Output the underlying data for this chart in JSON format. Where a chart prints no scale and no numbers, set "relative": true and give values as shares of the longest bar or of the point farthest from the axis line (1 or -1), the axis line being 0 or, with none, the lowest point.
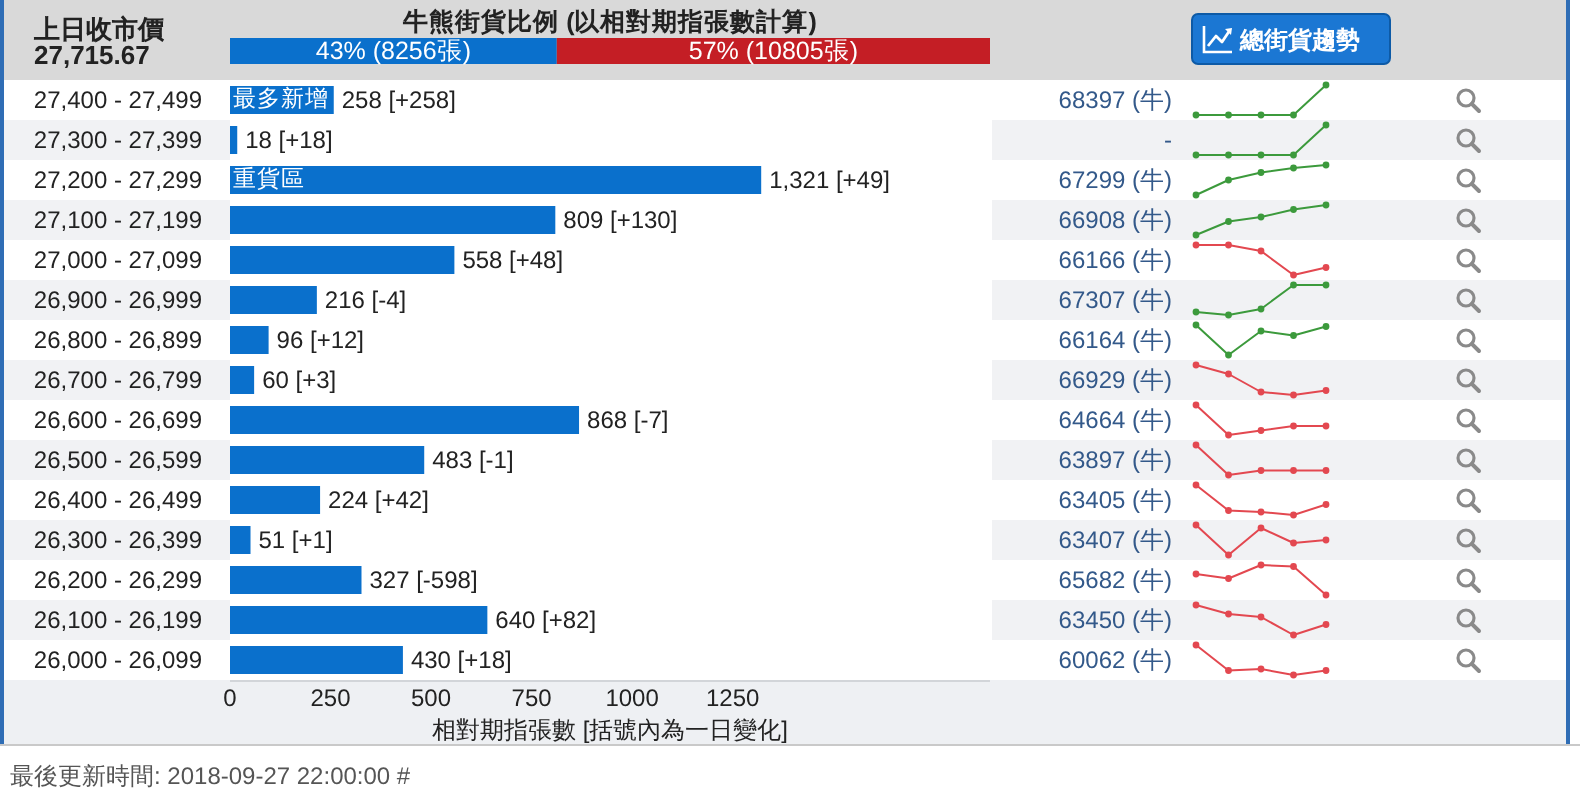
{
  "chart_data": [
    {
      "type": "other",
      "title": "上日收市價",
      "annotations": [
        "27,715.67"
      ]
    },
    {
      "type": "bar",
      "orientation": "horizontal",
      "stacked": true,
      "title": "牛熊街貨比例 (以相對期指張數計算)",
      "categories": [
        null
      ],
      "series": [
        {
          "color": "#0a70cc",
          "values": [
            43
          ],
          "value_labels": [
            "43% (8256張)"
          ]
        },
        {
          "color": "#c41e25",
          "values": [
            57
          ],
          "value_labels": [
            "57% (10805張)"
          ]
        }
      ],
      "xlim": [
        0,
        100
      ]
    },
    {
      "type": "bar",
      "orientation": "horizontal",
      "categories": [
        "27,400 - 27,499",
        "27,300 - 27,399",
        "27,200 - 27,299",
        "27,100 - 27,199",
        "27,000 - 27,099",
        "26,900 - 26,999",
        "26,800 - 26,899",
        "26,700 - 26,799",
        "26,600 - 26,699",
        "26,500 - 26,599",
        "26,400 - 26,499",
        "26,300 - 26,399",
        "26,200 - 26,299",
        "26,100 - 26,199",
        "26,000 - 26,099"
      ],
      "values": [
        258,
        18,
        1321,
        809,
        558,
        216,
        96,
        60,
        868,
        483,
        224,
        51,
        327,
        640,
        430
      ],
      "color": "#0a70cc",
      "value_labels": [
        "258 [+258]",
        "18 [+18]",
        "1,321 [+49]",
        "809 [+130]",
        "558 [+48]",
        "216 [-4]",
        "96 [+12]",
        "60 [+3]",
        "868 [-7]",
        "483 [-1]",
        "224 [+42]",
        "51 [+1]",
        "327 [-598]",
        "640 [+82]",
        "430 [+18]"
      ],
      "xlim": [
        0,
        1890
      ],
      "xticks": [
        0,
        250,
        500,
        750,
        1000,
        1250
      ],
      "xlabel": "相對期指張數 [括號內為一日變化]",
      "annotations": [
        {
          "text": "最多新增",
          "y": "27,400 - 27,499"
        },
        {
          "text": "重貨區",
          "y": "27,200 - 27,299"
        },
        "總街貨趨勢",
        "最後更新時間: 2018-09-27 22:00:00 #"
      ]
    },
    {
      "type": "line",
      "relative": true,
      "title": "68397 (牛)",
      "categories": [
        null,
        null,
        null,
        null,
        null
      ],
      "marker": "circle",
      "series": [
        {
          "color": "#3c9a3c",
          "values": [
            0,
            0,
            0,
            0,
            1
          ]
        }
      ]
    },
    {
      "type": "line",
      "relative": true,
      "title": "-",
      "categories": [
        null,
        null,
        null,
        null,
        null
      ],
      "marker": "circle",
      "series": [
        {
          "color": "#3c9a3c",
          "values": [
            0,
            0,
            0,
            0,
            1
          ]
        }
      ]
    },
    {
      "type": "line",
      "relative": true,
      "title": "67299 (牛)",
      "categories": [
        null,
        null,
        null,
        null,
        null
      ],
      "marker": "circle",
      "series": [
        {
          "color": "#3c9a3c",
          "values": [
            0,
            0.5,
            0.75,
            0.9,
            1
          ]
        }
      ]
    },
    {
      "type": "line",
      "relative": true,
      "title": "66908 (牛)",
      "categories": [
        null,
        null,
        null,
        null,
        null
      ],
      "marker": "circle",
      "series": [
        {
          "color": "#3c9a3c",
          "values": [
            0,
            0.45,
            0.6,
            0.85,
            1
          ]
        }
      ]
    },
    {
      "type": "line",
      "relative": true,
      "title": "66166 (牛)",
      "categories": [
        null,
        null,
        null,
        null,
        null
      ],
      "marker": "circle",
      "series": [
        {
          "color": "#e34850",
          "values": [
            1,
            1,
            0.8,
            0,
            0.25
          ]
        }
      ]
    },
    {
      "type": "line",
      "relative": true,
      "title": "67307 (牛)",
      "categories": [
        null,
        null,
        null,
        null,
        null
      ],
      "marker": "circle",
      "series": [
        {
          "color": "#3c9a3c",
          "values": [
            0.1,
            0,
            0.2,
            1,
            1
          ]
        }
      ]
    },
    {
      "type": "line",
      "relative": true,
      "title": "66164 (牛)",
      "categories": [
        null,
        null,
        null,
        null,
        null
      ],
      "marker": "circle",
      "series": [
        {
          "color": "#3c9a3c",
          "values": [
            1,
            0,
            0.8,
            0.65,
            0.95
          ]
        }
      ]
    },
    {
      "type": "line",
      "relative": true,
      "title": "66929 (牛)",
      "categories": [
        null,
        null,
        null,
        null,
        null
      ],
      "marker": "circle",
      "series": [
        {
          "color": "#e34850",
          "values": [
            1,
            0.7,
            0.1,
            0,
            0.15
          ]
        }
      ]
    },
    {
      "type": "line",
      "relative": true,
      "title": "64664 (牛)",
      "categories": [
        null,
        null,
        null,
        null,
        null
      ],
      "marker": "circle",
      "series": [
        {
          "color": "#e34850",
          "values": [
            1,
            0,
            0.15,
            0.3,
            0.3
          ]
        }
      ]
    },
    {
      "type": "line",
      "relative": true,
      "title": "63897 (牛)",
      "categories": [
        null,
        null,
        null,
        null,
        null
      ],
      "marker": "circle",
      "series": [
        {
          "color": "#e34850",
          "values": [
            1,
            0,
            0.15,
            0.15,
            0.15
          ]
        }
      ]
    },
    {
      "type": "line",
      "relative": true,
      "title": "63405 (牛)",
      "categories": [
        null,
        null,
        null,
        null,
        null
      ],
      "marker": "circle",
      "series": [
        {
          "color": "#e34850",
          "values": [
            1,
            0.15,
            0.1,
            0,
            0.35
          ]
        }
      ]
    },
    {
      "type": "line",
      "relative": true,
      "title": "63407 (牛)",
      "categories": [
        null,
        null,
        null,
        null,
        null
      ],
      "marker": "circle",
      "series": [
        {
          "color": "#e34850",
          "values": [
            1,
            0,
            0.9,
            0.4,
            0.5
          ]
        }
      ]
    },
    {
      "type": "line",
      "relative": true,
      "title": "65682 (牛)",
      "categories": [
        null,
        null,
        null,
        null,
        null
      ],
      "marker": "circle",
      "series": [
        {
          "color": "#e34850",
          "values": [
            0.7,
            0.55,
            1,
            0.95,
            0
          ]
        }
      ]
    },
    {
      "type": "line",
      "relative": true,
      "title": "63450 (牛)",
      "categories": [
        null,
        null,
        null,
        null,
        null
      ],
      "marker": "circle",
      "series": [
        {
          "color": "#e34850",
          "values": [
            1,
            0.7,
            0.6,
            0,
            0.35
          ]
        }
      ]
    },
    {
      "type": "line",
      "relative": true,
      "title": "60062 (牛)",
      "categories": [
        null,
        null,
        null,
        null,
        null
      ],
      "marker": "circle",
      "series": [
        {
          "color": "#e34850",
          "values": [
            1,
            0.15,
            0.2,
            0,
            0.15
          ]
        }
      ]
    }
  ]
}
